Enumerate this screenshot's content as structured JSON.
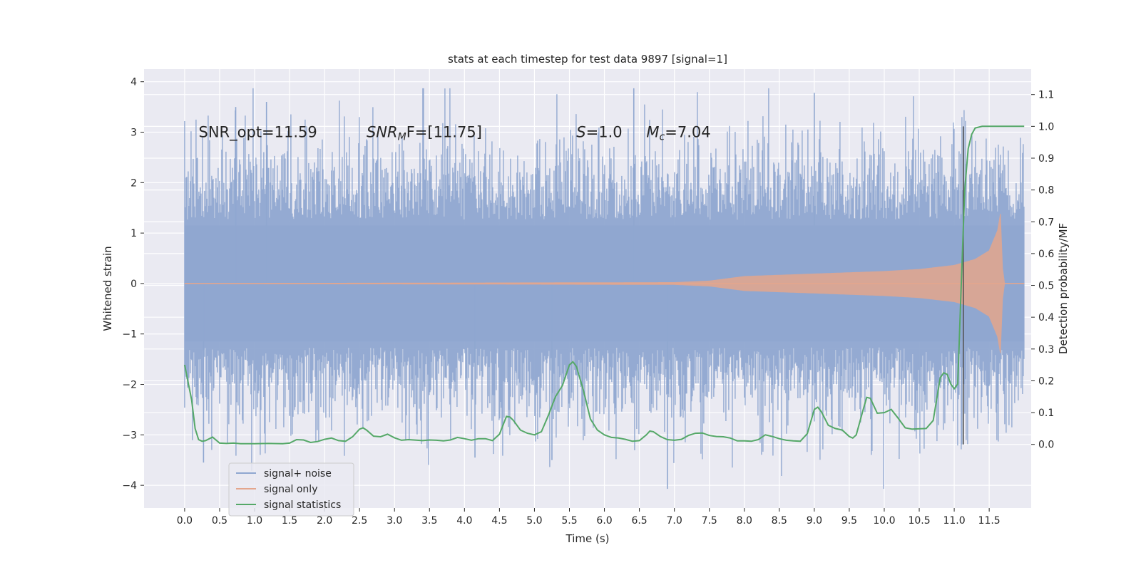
{
  "chart_data": {
    "type": "line",
    "title": "stats at each timestep for test data 9897 [signal=1]",
    "xlabel": "Time (s)",
    "ylabel": "Whitened strain",
    "ylabel_right": "Detection probability/MF",
    "xlim": [
      -0.58,
      12.1
    ],
    "ylim": [
      -4.45,
      4.25
    ],
    "ylim_right": [
      -0.2,
      1.18
    ],
    "x_ticks": [
      "0.0",
      "0.5",
      "1.0",
      "1.5",
      "2.0",
      "2.5",
      "3.0",
      "3.5",
      "4.0",
      "4.5",
      "5.0",
      "5.5",
      "6.0",
      "6.5",
      "7.0",
      "7.5",
      "8.0",
      "8.5",
      "9.0",
      "9.5",
      "10.0",
      "10.5",
      "11.0",
      "11.5"
    ],
    "y_ticks": [
      "−4",
      "−3",
      "−2",
      "−1",
      "0",
      "1",
      "2",
      "3",
      "4"
    ],
    "y_ticks_right": [
      "0.0",
      "0.1",
      "0.2",
      "0.3",
      "0.4",
      "0.5",
      "0.6",
      "0.7",
      "0.8",
      "0.9",
      "1.0",
      "1.1"
    ],
    "grid": true,
    "legend": "lower-left",
    "annotations": [
      {
        "text": "SNR_opt=11.59",
        "x": 0.2,
        "y": 3.0
      },
      {
        "text": "SNR_MF=[11.75]",
        "x": 2.6,
        "y": 3.0
      },
      {
        "text": "S=1.0",
        "x": 5.6,
        "y": 3.0
      },
      {
        "text": "M_c=7.04",
        "x": 6.6,
        "y": 3.0
      }
    ],
    "vertical_marker": {
      "x": 11.13,
      "y_right_range": [
        0.0,
        1.0
      ]
    },
    "series": [
      {
        "name": "signal+ noise",
        "color": "#8fa7d0",
        "axis": "left",
        "kind": "noise",
        "x_range": [
          0.0,
          12.0
        ],
        "typical_amplitude": 1.15,
        "max_value": 3.87,
        "min_value": -4.07
      },
      {
        "name": "signal only",
        "color": "#e4a68d",
        "axis": "left",
        "kind": "chirp",
        "x_range": [
          0.0,
          12.0
        ],
        "envelope": [
          {
            "x": 0.0,
            "amp": 0.0
          },
          {
            "x": 7.0,
            "amp": 0.02
          },
          {
            "x": 7.5,
            "amp": 0.05
          },
          {
            "x": 8.0,
            "amp": 0.14
          },
          {
            "x": 9.0,
            "amp": 0.19
          },
          {
            "x": 10.0,
            "amp": 0.24
          },
          {
            "x": 10.5,
            "amp": 0.28
          },
          {
            "x": 11.0,
            "amp": 0.36
          },
          {
            "x": 11.3,
            "amp": 0.48
          },
          {
            "x": 11.5,
            "amp": 0.65
          },
          {
            "x": 11.62,
            "amp": 1.05
          },
          {
            "x": 11.66,
            "amp": 1.38
          },
          {
            "x": 11.69,
            "amp": 0.3
          },
          {
            "x": 11.72,
            "amp": 0.0
          },
          {
            "x": 12.0,
            "amp": 0.0
          }
        ]
      },
      {
        "name": "signal statistics",
        "color": "#55a868",
        "axis": "right",
        "points": [
          [
            0.0,
            0.25
          ],
          [
            0.1,
            0.14
          ],
          [
            0.15,
            0.05
          ],
          [
            0.2,
            0.015
          ],
          [
            0.25,
            0.01
          ],
          [
            0.3,
            0.012
          ],
          [
            0.4,
            0.023
          ],
          [
            0.5,
            0.004
          ],
          [
            0.6,
            0.003
          ],
          [
            0.7,
            0.004
          ],
          [
            0.8,
            0.002
          ],
          [
            1.0,
            0.002
          ],
          [
            1.2,
            0.003
          ],
          [
            1.4,
            0.002
          ],
          [
            1.5,
            0.004
          ],
          [
            1.6,
            0.015
          ],
          [
            1.7,
            0.014
          ],
          [
            1.8,
            0.006
          ],
          [
            1.9,
            0.009
          ],
          [
            2.0,
            0.016
          ],
          [
            2.1,
            0.02
          ],
          [
            2.2,
            0.012
          ],
          [
            2.3,
            0.01
          ],
          [
            2.4,
            0.024
          ],
          [
            2.5,
            0.048
          ],
          [
            2.55,
            0.052
          ],
          [
            2.6,
            0.045
          ],
          [
            2.7,
            0.026
          ],
          [
            2.8,
            0.024
          ],
          [
            2.9,
            0.032
          ],
          [
            3.0,
            0.021
          ],
          [
            3.1,
            0.013
          ],
          [
            3.2,
            0.015
          ],
          [
            3.4,
            0.012
          ],
          [
            3.5,
            0.014
          ],
          [
            3.6,
            0.013
          ],
          [
            3.7,
            0.011
          ],
          [
            3.8,
            0.014
          ],
          [
            3.9,
            0.022
          ],
          [
            4.0,
            0.018
          ],
          [
            4.1,
            0.013
          ],
          [
            4.2,
            0.018
          ],
          [
            4.3,
            0.018
          ],
          [
            4.4,
            0.012
          ],
          [
            4.5,
            0.032
          ],
          [
            4.6,
            0.088
          ],
          [
            4.65,
            0.086
          ],
          [
            4.7,
            0.075
          ],
          [
            4.8,
            0.045
          ],
          [
            4.9,
            0.035
          ],
          [
            5.0,
            0.03
          ],
          [
            5.1,
            0.04
          ],
          [
            5.2,
            0.092
          ],
          [
            5.3,
            0.15
          ],
          [
            5.4,
            0.185
          ],
          [
            5.5,
            0.25
          ],
          [
            5.55,
            0.26
          ],
          [
            5.6,
            0.245
          ],
          [
            5.7,
            0.17
          ],
          [
            5.8,
            0.08
          ],
          [
            5.9,
            0.045
          ],
          [
            6.0,
            0.03
          ],
          [
            6.1,
            0.022
          ],
          [
            6.2,
            0.02
          ],
          [
            6.3,
            0.016
          ],
          [
            6.4,
            0.01
          ],
          [
            6.5,
            0.012
          ],
          [
            6.6,
            0.03
          ],
          [
            6.65,
            0.042
          ],
          [
            6.7,
            0.04
          ],
          [
            6.8,
            0.025
          ],
          [
            6.9,
            0.015
          ],
          [
            7.0,
            0.013
          ],
          [
            7.1,
            0.016
          ],
          [
            7.2,
            0.028
          ],
          [
            7.3,
            0.035
          ],
          [
            7.4,
            0.036
          ],
          [
            7.5,
            0.028
          ],
          [
            7.6,
            0.025
          ],
          [
            7.7,
            0.024
          ],
          [
            7.8,
            0.02
          ],
          [
            7.9,
            0.011
          ],
          [
            8.0,
            0.011
          ],
          [
            8.1,
            0.01
          ],
          [
            8.2,
            0.015
          ],
          [
            8.3,
            0.03
          ],
          [
            8.4,
            0.025
          ],
          [
            8.5,
            0.018
          ],
          [
            8.6,
            0.013
          ],
          [
            8.7,
            0.011
          ],
          [
            8.8,
            0.01
          ],
          [
            8.9,
            0.034
          ],
          [
            9.0,
            0.11
          ],
          [
            9.05,
            0.117
          ],
          [
            9.1,
            0.103
          ],
          [
            9.2,
            0.06
          ],
          [
            9.3,
            0.05
          ],
          [
            9.4,
            0.045
          ],
          [
            9.5,
            0.025
          ],
          [
            9.55,
            0.02
          ],
          [
            9.6,
            0.03
          ],
          [
            9.7,
            0.11
          ],
          [
            9.75,
            0.148
          ],
          [
            9.8,
            0.145
          ],
          [
            9.9,
            0.098
          ],
          [
            10.0,
            0.1
          ],
          [
            10.1,
            0.11
          ],
          [
            10.2,
            0.082
          ],
          [
            10.3,
            0.052
          ],
          [
            10.4,
            0.048
          ],
          [
            10.6,
            0.05
          ],
          [
            10.7,
            0.075
          ],
          [
            10.8,
            0.21
          ],
          [
            10.85,
            0.225
          ],
          [
            10.9,
            0.22
          ],
          [
            10.95,
            0.19
          ],
          [
            11.0,
            0.175
          ],
          [
            11.05,
            0.19
          ],
          [
            11.1,
            0.5
          ],
          [
            11.15,
            0.8
          ],
          [
            11.2,
            0.93
          ],
          [
            11.25,
            0.975
          ],
          [
            11.3,
            0.995
          ],
          [
            11.4,
            1.0
          ],
          [
            11.7,
            1.0
          ],
          [
            12.0,
            1.0
          ]
        ]
      }
    ]
  }
}
